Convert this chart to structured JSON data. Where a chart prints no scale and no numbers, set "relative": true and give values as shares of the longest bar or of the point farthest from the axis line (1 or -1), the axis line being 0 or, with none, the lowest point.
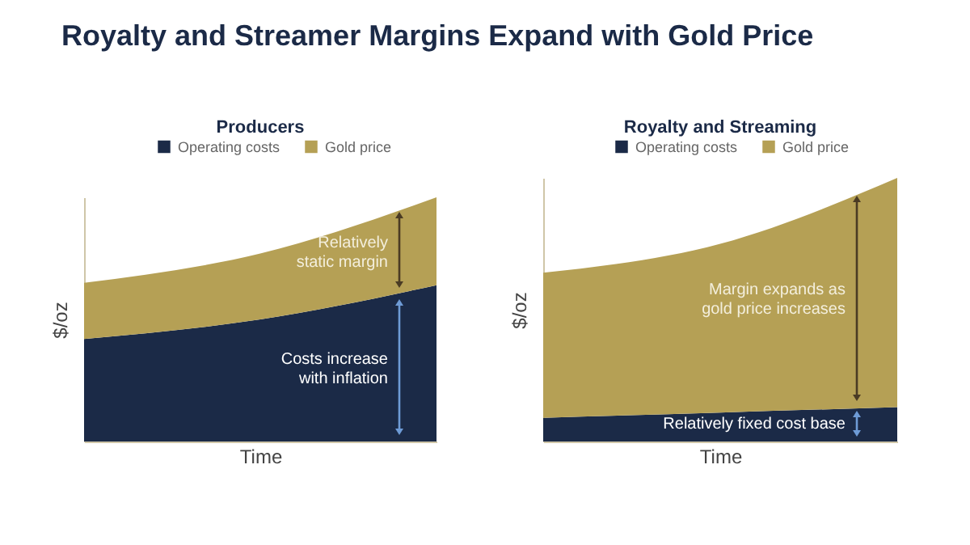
{
  "chart_data": [
    {
      "type": "area",
      "title": "Royalty and Streamer Margins Expand with Gold Price",
      "subtitle": "Producers",
      "xlabel": "Time",
      "ylabel": "$/oz",
      "categories": [
        null,
        null,
        null
      ],
      "stacked": true,
      "relative": true,
      "tick_labels": false,
      "legend": "top left",
      "series": [
        {
          "name": "Operating costs",
          "color": "#1b2a47",
          "values": [
            0.42,
            0.5,
            0.64
          ]
        },
        {
          "name": "Gold price",
          "color": "#b5a055",
          "values": [
            0.23,
            0.27,
            0.36
          ]
        }
      ],
      "annotations": [
        "Relatively static margin",
        "Costs increase with inflation"
      ]
    },
    {
      "type": "area",
      "subtitle": "Royalty and Streaming",
      "xlabel": "Time",
      "ylabel": "$/oz",
      "categories": [
        null,
        null,
        null
      ],
      "stacked": true,
      "relative": true,
      "tick_labels": false,
      "legend": "top left",
      "series": [
        {
          "name": "Operating costs",
          "color": "#1b2a47",
          "values": [
            0.09,
            0.11,
            0.13
          ]
        },
        {
          "name": "Gold price",
          "color": "#b5a055",
          "values": [
            0.55,
            0.64,
            0.87
          ]
        }
      ],
      "annotations": [
        "Margin expands as gold price increases",
        "Relatively fixed cost base"
      ]
    }
  ]
}
